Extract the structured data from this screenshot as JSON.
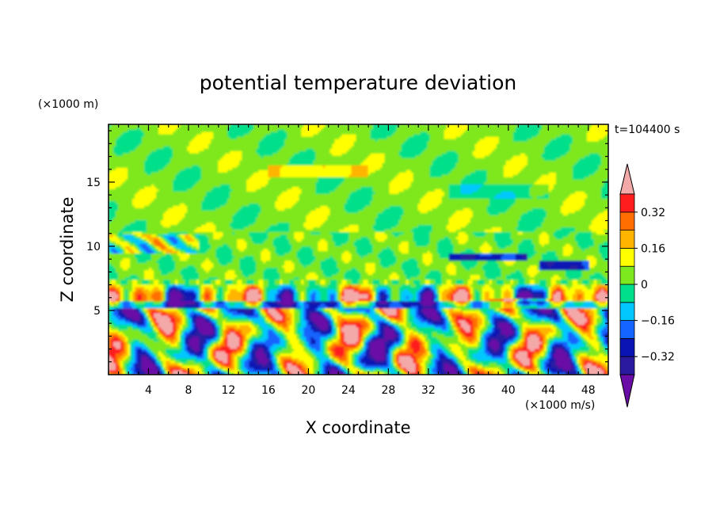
{
  "chart_data": {
    "type": "heatmap",
    "title": "potential temperature deviation",
    "xlabel": "X coordinate",
    "ylabel": "Z coordinate",
    "x_unit": "(×1000 m/s)",
    "y_unit": "(×1000 m)",
    "time_label": "t=104400 s",
    "xlim": [
      0,
      50
    ],
    "ylim": [
      0,
      19.5
    ],
    "x_ticks": [
      4,
      8,
      12,
      16,
      20,
      24,
      28,
      32,
      36,
      40,
      44,
      48
    ],
    "x_tick_labels": [
      "4",
      "8",
      "12",
      "16",
      "20",
      "24",
      "28",
      "32",
      "36",
      "40",
      "44",
      "48"
    ],
    "y_ticks": [
      5,
      10,
      15
    ],
    "y_tick_labels": [
      "5",
      "10",
      "15"
    ],
    "colorbar": {
      "levels": [
        -0.4,
        -0.32,
        -0.24,
        -0.16,
        -0.08,
        0,
        0.08,
        0.16,
        0.24,
        0.32,
        0.4
      ],
      "labels": [
        {
          "value": 0.32,
          "text": "0.32"
        },
        {
          "value": 0.16,
          "text": "0.16"
        },
        {
          "value": 0,
          "text": "0"
        },
        {
          "value": -0.16,
          "text": "−0.16"
        },
        {
          "value": -0.32,
          "text": "−0.32"
        }
      ],
      "colors": [
        "#2a1aa0",
        "#0a14b4",
        "#1464ff",
        "#00c8ff",
        "#00e08a",
        "#7ee81e",
        "#ffff00",
        "#ffb400",
        "#ff6e00",
        "#ff1e1e"
      ],
      "over_color": "#f4a9a9",
      "under_color": "#6a0ca6"
    }
  }
}
